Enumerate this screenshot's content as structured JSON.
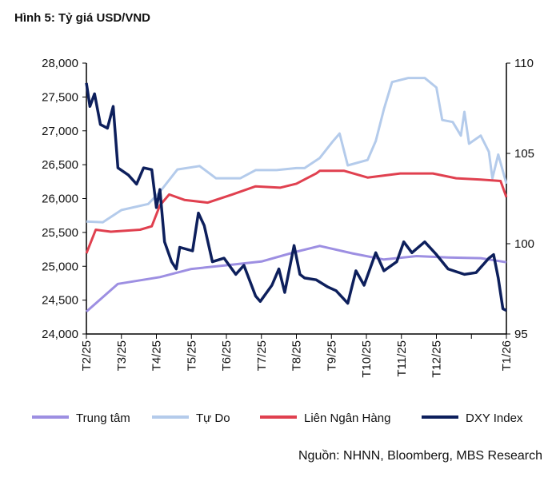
{
  "title": "Hình 5: Tỷ giá USD/VND",
  "source": "Nguồn: NHNN, Bloomberg, MBS Research",
  "chart_data": {
    "type": "line",
    "title": "Hình 5: Tỷ giá USD/VND",
    "x_range": [
      "2025-02-01",
      "2026-02-01"
    ],
    "x_tick_labels": [
      "T2/25",
      "T3/25",
      "T4/25",
      "T5/25",
      "T6/25",
      "T7/25",
      "T8/25",
      "T9/25",
      "T10/25",
      "T11/25",
      "T12/25",
      "",
      "T1/26"
    ],
    "y_left": {
      "range": [
        24000,
        28000
      ],
      "ticks": [
        "24,000",
        "24,500",
        "25,000",
        "25,500",
        "26,000",
        "26,500",
        "27,000",
        "27,500",
        "28,000"
      ]
    },
    "y_right": {
      "range": [
        95,
        110
      ],
      "ticks": [
        "95",
        "100",
        "105",
        "110"
      ]
    },
    "grid": false,
    "legend_position": "bottom",
    "series": [
      {
        "name": "Trung tâm",
        "axis": "left",
        "color": "#9d8fe2",
        "points": [
          [
            "2025-02-01",
            24330
          ],
          [
            "2025-02-28",
            24740
          ],
          [
            "2025-04-04",
            24840
          ],
          [
            "2025-05-01",
            24960
          ],
          [
            "2025-06-01",
            25015
          ],
          [
            "2025-07-01",
            25070
          ],
          [
            "2025-08-01",
            25215
          ],
          [
            "2025-08-21",
            25300
          ],
          [
            "2025-09-19",
            25190
          ],
          [
            "2025-10-16",
            25100
          ],
          [
            "2025-11-14",
            25150
          ],
          [
            "2025-12-11",
            25130
          ],
          [
            "2026-01-09",
            25120
          ],
          [
            "2026-01-31",
            25060
          ]
        ]
      },
      {
        "name": "Tự Do",
        "axis": "left",
        "color": "#b4cbeb",
        "points": [
          [
            "2025-02-01",
            25660
          ],
          [
            "2025-02-15",
            25650
          ],
          [
            "2025-03-01",
            25830
          ],
          [
            "2025-03-24",
            25920
          ],
          [
            "2025-04-04",
            26100
          ],
          [
            "2025-04-19",
            26430
          ],
          [
            "2025-05-08",
            26480
          ],
          [
            "2025-05-22",
            26300
          ],
          [
            "2025-06-13",
            26300
          ],
          [
            "2025-06-26",
            26420
          ],
          [
            "2025-07-14",
            26420
          ],
          [
            "2025-08-01",
            26450
          ],
          [
            "2025-08-08",
            26450
          ],
          [
            "2025-08-21",
            26600
          ],
          [
            "2025-09-02",
            26840
          ],
          [
            "2025-09-08",
            26960
          ],
          [
            "2025-09-15",
            26490
          ],
          [
            "2025-10-02",
            26570
          ],
          [
            "2025-10-09",
            26850
          ],
          [
            "2025-10-16",
            27320
          ],
          [
            "2025-10-23",
            27720
          ],
          [
            "2025-11-07",
            27780
          ],
          [
            "2025-11-21",
            27780
          ],
          [
            "2025-12-01",
            27640
          ],
          [
            "2025-12-06",
            27160
          ],
          [
            "2025-12-15",
            27130
          ],
          [
            "2025-12-22",
            26930
          ],
          [
            "2025-12-25",
            27280
          ],
          [
            "2025-12-29",
            26810
          ],
          [
            "2026-01-09",
            26930
          ],
          [
            "2026-01-16",
            26690
          ],
          [
            "2026-01-19",
            26300
          ],
          [
            "2026-01-24",
            26650
          ],
          [
            "2026-01-31",
            26220
          ]
        ]
      },
      {
        "name": "Liên Ngân Hàng",
        "axis": "left",
        "color": "#e0404f",
        "points": [
          [
            "2025-02-01",
            25190
          ],
          [
            "2025-02-09",
            25540
          ],
          [
            "2025-02-22",
            25510
          ],
          [
            "2025-03-17",
            25540
          ],
          [
            "2025-03-27",
            25590
          ],
          [
            "2025-04-04",
            25900
          ],
          [
            "2025-04-12",
            26060
          ],
          [
            "2025-04-25",
            25980
          ],
          [
            "2025-05-15",
            25940
          ],
          [
            "2025-06-06",
            26060
          ],
          [
            "2025-06-26",
            26180
          ],
          [
            "2025-07-17",
            26160
          ],
          [
            "2025-08-01",
            26220
          ],
          [
            "2025-08-18",
            26370
          ],
          [
            "2025-08-21",
            26410
          ],
          [
            "2025-09-12",
            26410
          ],
          [
            "2025-10-02",
            26310
          ],
          [
            "2025-10-30",
            26370
          ],
          [
            "2025-11-28",
            26370
          ],
          [
            "2025-12-18",
            26300
          ],
          [
            "2026-01-09",
            26280
          ],
          [
            "2026-01-26",
            26260
          ],
          [
            "2026-01-31",
            26020
          ]
        ]
      },
      {
        "name": "DXY Index",
        "axis": "right",
        "color": "#0d1f5c",
        "points": [
          [
            "2025-02-01",
            108.9
          ],
          [
            "2025-02-04",
            107.6
          ],
          [
            "2025-02-08",
            108.3
          ],
          [
            "2025-02-13",
            106.6
          ],
          [
            "2025-02-19",
            106.4
          ],
          [
            "2025-02-24",
            107.6
          ],
          [
            "2025-02-28",
            104.2
          ],
          [
            "2025-03-07",
            103.8
          ],
          [
            "2025-03-14",
            103.3
          ],
          [
            "2025-03-20",
            104.2
          ],
          [
            "2025-03-27",
            104.1
          ],
          [
            "2025-03-31",
            102.0
          ],
          [
            "2025-04-04",
            103.0
          ],
          [
            "2025-04-08",
            100.1
          ],
          [
            "2025-04-14",
            99.0
          ],
          [
            "2025-04-18",
            98.6
          ],
          [
            "2025-04-21",
            99.8
          ],
          [
            "2025-05-02",
            99.6
          ],
          [
            "2025-05-07",
            101.7
          ],
          [
            "2025-05-12",
            101.0
          ],
          [
            "2025-05-19",
            99.0
          ],
          [
            "2025-05-29",
            99.2
          ],
          [
            "2025-06-09",
            98.3
          ],
          [
            "2025-06-16",
            98.8
          ],
          [
            "2025-06-26",
            97.1
          ],
          [
            "2025-06-30",
            96.8
          ],
          [
            "2025-07-10",
            97.7
          ],
          [
            "2025-07-16",
            98.6
          ],
          [
            "2025-07-21",
            97.3
          ],
          [
            "2025-07-29",
            99.9
          ],
          [
            "2025-08-04",
            98.3
          ],
          [
            "2025-08-08",
            98.1
          ],
          [
            "2025-08-18",
            98.0
          ],
          [
            "2025-08-28",
            97.6
          ],
          [
            "2025-09-05",
            97.4
          ],
          [
            "2025-09-15",
            96.7
          ],
          [
            "2025-09-22",
            98.5
          ],
          [
            "2025-09-29",
            97.7
          ],
          [
            "2025-10-09",
            99.5
          ],
          [
            "2025-10-16",
            98.5
          ],
          [
            "2025-10-27",
            99.0
          ],
          [
            "2025-11-03",
            100.1
          ],
          [
            "2025-11-10",
            99.5
          ],
          [
            "2025-11-21",
            100.1
          ],
          [
            "2025-12-01",
            99.4
          ],
          [
            "2025-12-11",
            98.6
          ],
          [
            "2025-12-25",
            98.3
          ],
          [
            "2026-01-05",
            98.4
          ],
          [
            "2026-01-16",
            99.2
          ],
          [
            "2026-01-20",
            99.4
          ],
          [
            "2026-01-24",
            98.1
          ],
          [
            "2026-01-28",
            96.4
          ],
          [
            "2026-01-31",
            96.3
          ]
        ]
      }
    ]
  }
}
